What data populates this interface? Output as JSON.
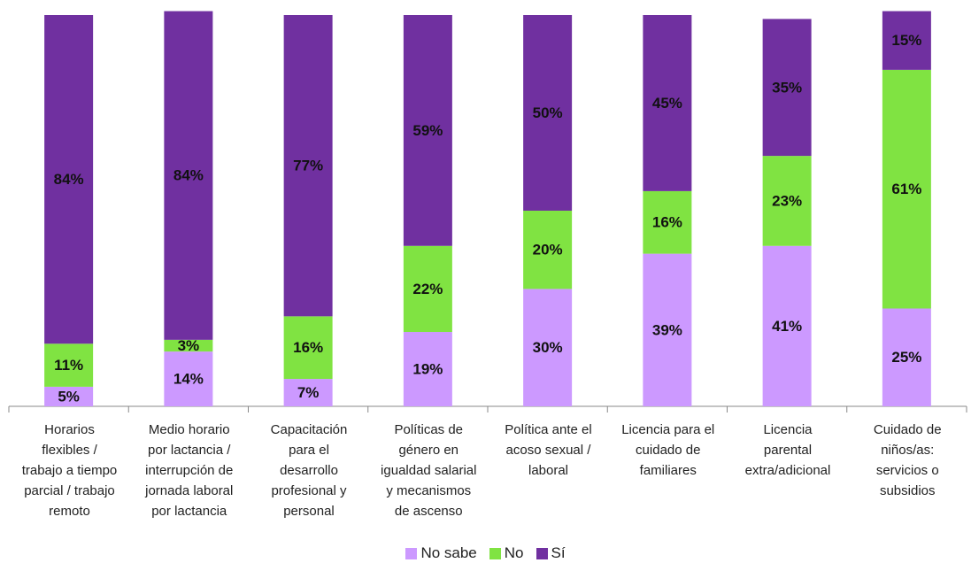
{
  "chart_data": {
    "type": "stacked_bar",
    "categories": [
      "Horarios\nflexibles /\ntrabajo a tiempo\nparcial / trabajo\nremoto",
      "Medio horario\npor lactancia /\ninterrupción de\njornada laboral\npor lactancia",
      "Capacitación\npara el\ndesarrollo\nprofesional y\npersonal",
      "Políticas de\ngénero en\nigualdad salarial\ny mecanismos\nde ascenso",
      "Política ante el\nacoso sexual /\nlaboral",
      "Licencia para el\ncuidado de\nfamiliares",
      "Licencia\nparental\nextra/adicional",
      "Cuidado de\nniños/as:\nservicios o\nsubsidios"
    ],
    "series": [
      {
        "name": "No sabe",
        "color": "#cc99ff",
        "values": [
          5,
          14,
          7,
          19,
          30,
          39,
          41,
          25
        ],
        "value_labels": [
          "5%",
          "14%",
          "7%",
          "19%",
          "30%",
          "39%",
          "41%",
          "25%"
        ]
      },
      {
        "name": "No",
        "color": "#80e342",
        "values": [
          11,
          3,
          16,
          22,
          20,
          16,
          23,
          61
        ],
        "value_labels": [
          "11%",
          "3%",
          "16%",
          "22%",
          "20%",
          "16%",
          "23%",
          "61%"
        ]
      },
      {
        "name": "Sí",
        "color": "#7030a0",
        "values": [
          84,
          84,
          77,
          59,
          50,
          45,
          35,
          15
        ],
        "value_labels": [
          "84%",
          "84%",
          "77%",
          "59%",
          "50%",
          "45%",
          "35%",
          "15%"
        ]
      }
    ],
    "ylim": [
      0,
      100
    ],
    "legend": "bottom"
  }
}
